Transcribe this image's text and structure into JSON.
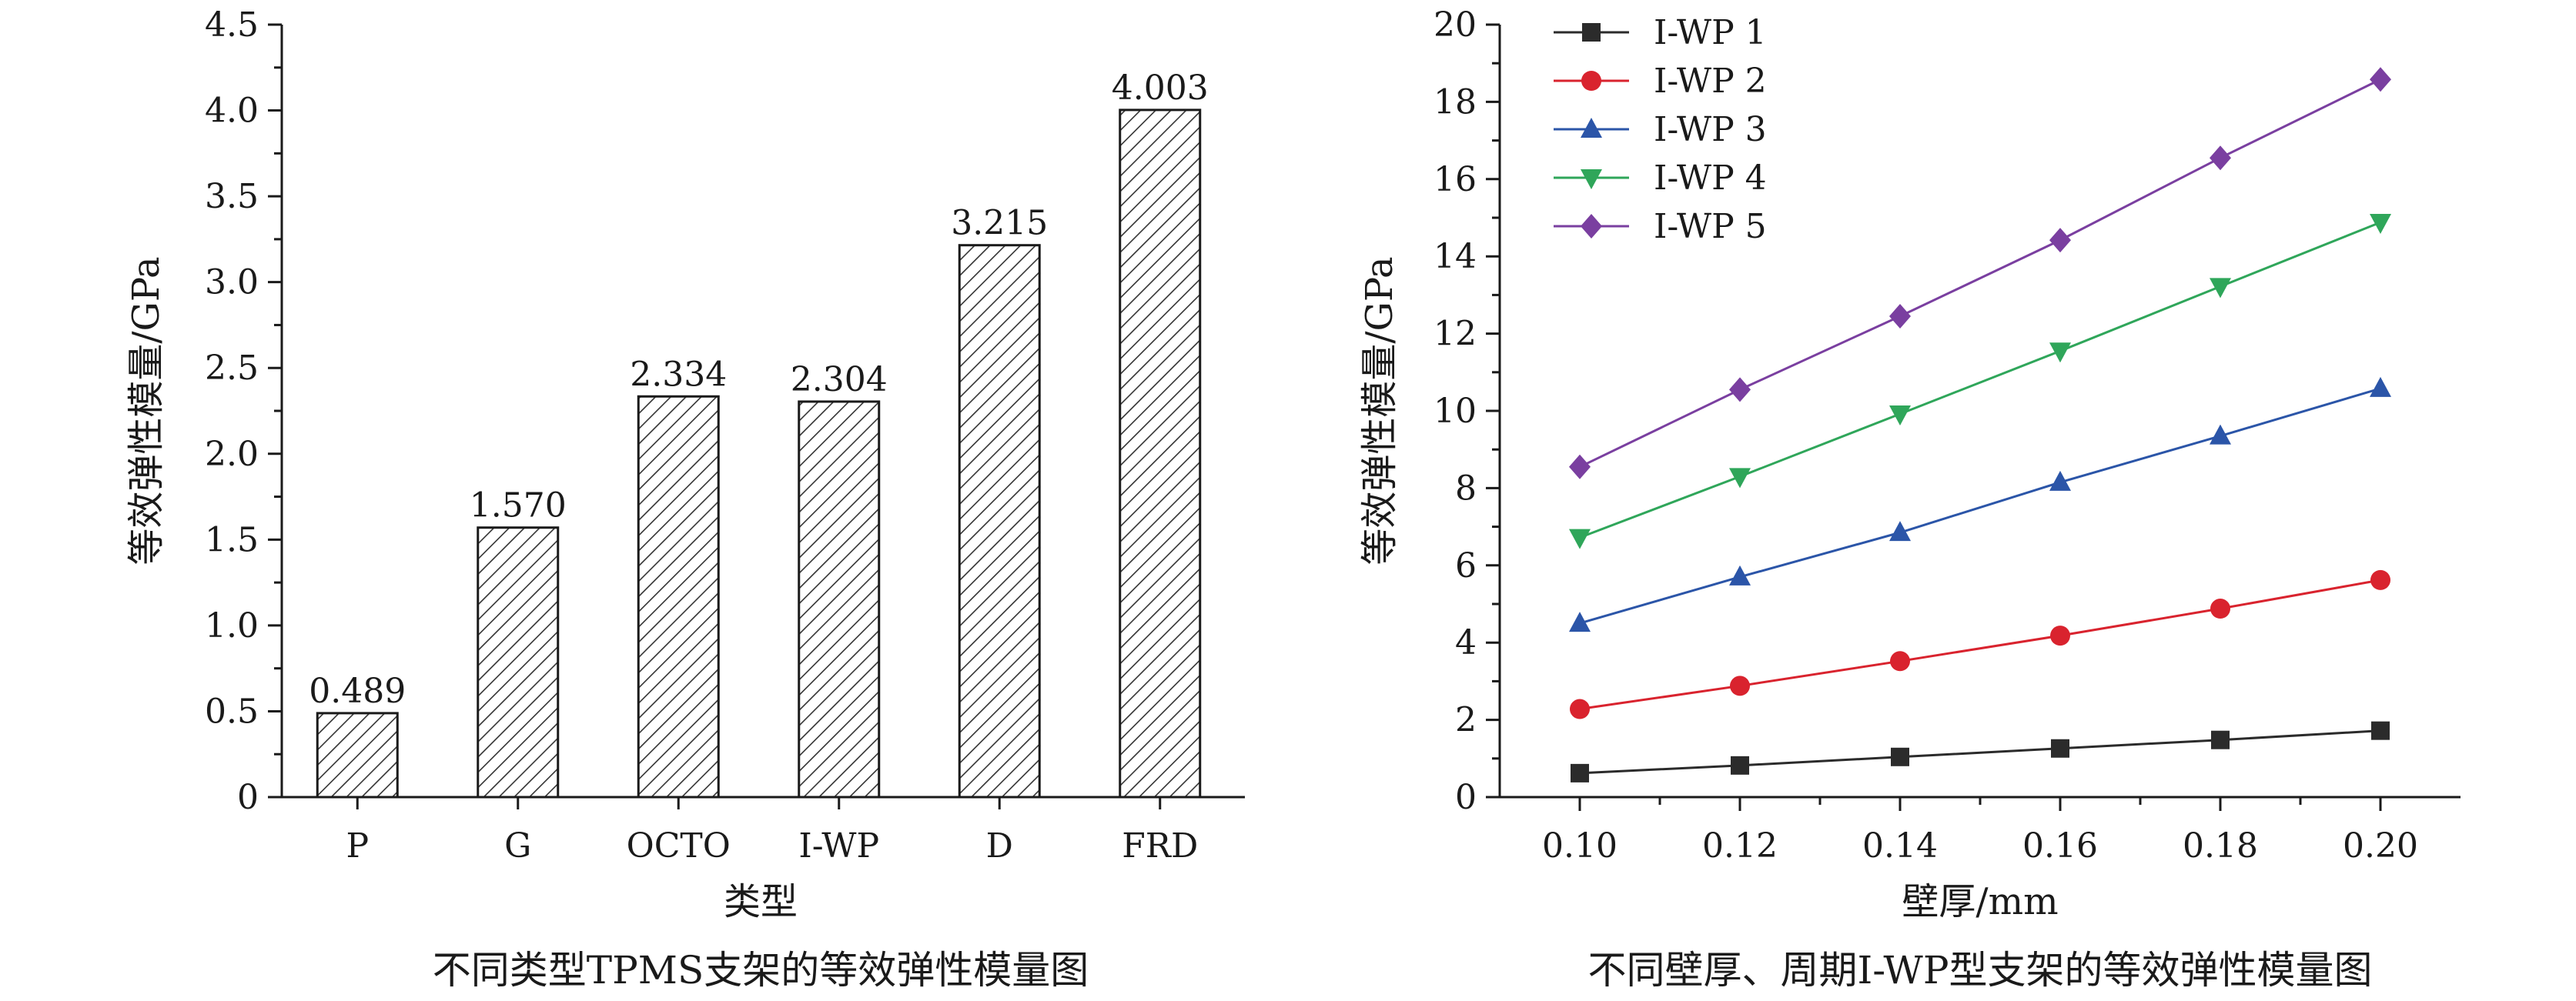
{
  "chart_data": [
    {
      "type": "bar",
      "title": "不同类型TPMS支架的等效弹性模量图",
      "xlabel": "类型",
      "ylabel": "等效弹性模量/GPa",
      "ylim": [
        0,
        4.5
      ],
      "yticks": [
        "0",
        "0.5",
        "1.0",
        "1.5",
        "2.0",
        "2.5",
        "3.0",
        "3.5",
        "4.0",
        "4.5"
      ],
      "categories": [
        "P",
        "G",
        "OCTO",
        "I-WP",
        "D",
        "FRD"
      ],
      "values": [
        0.489,
        1.57,
        2.334,
        2.304,
        3.215,
        4.003
      ],
      "value_labels": [
        "0.489",
        "1.570",
        "2.334",
        "2.304",
        "3.215",
        "4.003"
      ],
      "bar_fill": "hatched",
      "grid": false
    },
    {
      "type": "line",
      "title": "不同壁厚、周期I-WP型支架的等效弹性模量图",
      "xlabel": "壁厚/mm",
      "ylabel": "等效弹性模量/GPa",
      "xlim": [
        0.09,
        0.21
      ],
      "ylim": [
        0,
        20
      ],
      "x": [
        0.1,
        0.12,
        0.14,
        0.16,
        0.18,
        0.2
      ],
      "xticks": [
        "0.10",
        "0.12",
        "0.14",
        "0.16",
        "0.18",
        "0.20"
      ],
      "yticks": [
        "0",
        "2",
        "4",
        "6",
        "8",
        "10",
        "12",
        "14",
        "16",
        "18",
        "20"
      ],
      "legend_position": "top-left",
      "grid": false,
      "series": [
        {
          "name": "I-WP 1",
          "color": "#2b2b2b",
          "marker": "square",
          "values": [
            0.62,
            0.82,
            1.04,
            1.26,
            1.48,
            1.72
          ]
        },
        {
          "name": "I-WP 2",
          "color": "#d9232e",
          "marker": "circle",
          "values": [
            2.28,
            2.88,
            3.52,
            4.18,
            4.88,
            5.62
          ]
        },
        {
          "name": "I-WP 3",
          "color": "#2b55a8",
          "marker": "triangle-up",
          "values": [
            4.5,
            5.7,
            6.85,
            8.15,
            9.35,
            10.58
          ]
        },
        {
          "name": "I-WP 4",
          "color": "#2fa65a",
          "marker": "triangle-down",
          "values": [
            6.72,
            8.3,
            9.92,
            11.55,
            13.22,
            14.88
          ]
        },
        {
          "name": "I-WP 5",
          "color": "#7a3fa0",
          "marker": "diamond",
          "values": [
            8.55,
            10.55,
            12.45,
            14.42,
            16.55,
            18.58
          ]
        }
      ]
    }
  ]
}
